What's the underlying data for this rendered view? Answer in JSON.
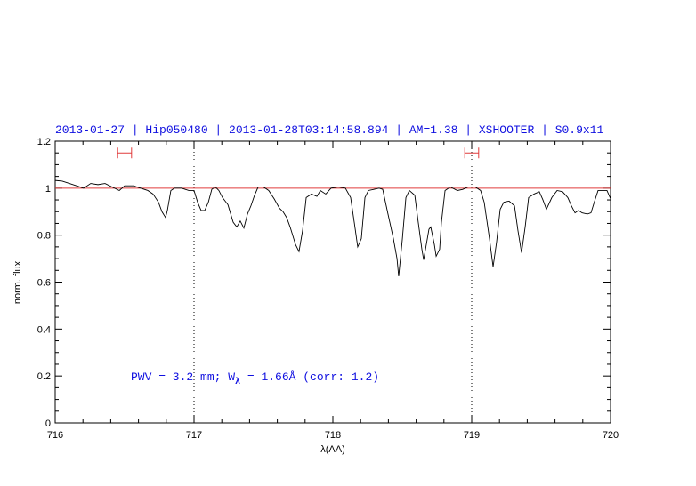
{
  "chart_data": {
    "type": "line",
    "title": "2013-01-27 | Hip050480 | 2013-01-28T03:14:58.894 | AM=1.38 | XSHOOTER | S0.9x11",
    "xlabel": "λ(AA)",
    "ylabel": "norm. flux",
    "annotation": [
      "PWV = 3.2 mm; W",
      "λ",
      " = 1.66Å (corr: 1.2)"
    ],
    "color": "#000000",
    "x": [
      716.0,
      716.051,
      716.103,
      716.154,
      716.205,
      716.256,
      716.308,
      716.359,
      716.41,
      716.462,
      716.5,
      716.564,
      716.615,
      716.667,
      716.705,
      716.744,
      716.769,
      716.795,
      716.808,
      716.833,
      716.859,
      716.91,
      716.962,
      717.0,
      717.026,
      717.051,
      717.077,
      717.103,
      717.128,
      717.154,
      717.179,
      717.205,
      717.244,
      717.282,
      717.308,
      717.333,
      717.359,
      717.385,
      717.41,
      717.436,
      717.462,
      717.5,
      717.538,
      717.577,
      717.615,
      717.641,
      717.667,
      717.692,
      717.731,
      717.756,
      717.782,
      717.808,
      717.846,
      717.885,
      717.91,
      717.949,
      717.987,
      718.038,
      718.09,
      718.128,
      718.154,
      718.179,
      718.205,
      718.231,
      718.256,
      718.295,
      718.333,
      718.359,
      718.397,
      718.436,
      718.462,
      718.474,
      718.5,
      718.526,
      718.551,
      718.59,
      718.615,
      718.641,
      718.654,
      718.679,
      718.692,
      718.705,
      718.731,
      718.744,
      718.769,
      718.782,
      718.808,
      718.846,
      718.897,
      718.936,
      718.974,
      719.026,
      719.064,
      719.09,
      719.128,
      719.154,
      719.179,
      719.205,
      719.231,
      719.269,
      719.308,
      719.333,
      719.359,
      719.385,
      719.41,
      719.449,
      719.487,
      719.513,
      719.538,
      719.577,
      719.615,
      719.654,
      719.692,
      719.718,
      719.744,
      719.769,
      719.795,
      719.833,
      719.859,
      719.885,
      719.91,
      719.949,
      719.974,
      720.0
    ],
    "values": [
      1.033,
      1.03,
      1.02,
      1.01,
      1.0,
      1.02,
      1.015,
      1.02,
      1.005,
      0.99,
      1.01,
      1.01,
      1.0,
      0.99,
      0.975,
      0.94,
      0.9,
      0.875,
      0.905,
      0.99,
      1.0,
      1.0,
      0.99,
      0.99,
      0.94,
      0.905,
      0.905,
      0.94,
      0.995,
      1.005,
      0.99,
      0.96,
      0.93,
      0.855,
      0.835,
      0.86,
      0.83,
      0.89,
      0.925,
      0.97,
      1.005,
      1.005,
      0.99,
      0.955,
      0.915,
      0.9,
      0.875,
      0.835,
      0.76,
      0.73,
      0.82,
      0.96,
      0.975,
      0.965,
      0.99,
      0.975,
      1.0,
      1.005,
      1.0,
      0.96,
      0.855,
      0.75,
      0.785,
      0.96,
      0.99,
      0.995,
      1.0,
      0.995,
      0.89,
      0.785,
      0.7,
      0.625,
      0.78,
      0.96,
      0.99,
      0.97,
      0.855,
      0.74,
      0.695,
      0.78,
      0.825,
      0.835,
      0.76,
      0.71,
      0.74,
      0.855,
      0.99,
      1.005,
      0.99,
      0.995,
      1.005,
      1.005,
      0.99,
      0.94,
      0.785,
      0.665,
      0.77,
      0.91,
      0.94,
      0.945,
      0.925,
      0.82,
      0.725,
      0.835,
      0.96,
      0.975,
      0.985,
      0.95,
      0.91,
      0.96,
      0.99,
      0.985,
      0.96,
      0.925,
      0.895,
      0.905,
      0.895,
      0.89,
      0.895,
      0.945,
      0.99,
      0.99,
      0.99,
      0.955
    ],
    "hline": 1,
    "hline_color": "#e03c3c",
    "vlines": [
      717,
      719
    ],
    "windows": [
      [
        716.45,
        716.55
      ],
      [
        718.95,
        719.05
      ]
    ],
    "window_y": 1.15,
    "window_color": "#e03c3c",
    "text_color": "#1010e0",
    "xlim": [
      716,
      720
    ],
    "ylim": [
      0,
      1.2
    ],
    "xticks": [
      716,
      717,
      718,
      719,
      720
    ],
    "yticks": [
      0,
      0.2,
      0.4,
      0.6,
      0.8,
      1,
      1.2
    ],
    "xminorticks": [
      716.2,
      716.4,
      716.6,
      716.8,
      717.2,
      717.4,
      717.6,
      717.8,
      718.2,
      718.4,
      718.6,
      718.8,
      719.2,
      719.4,
      719.6,
      719.8
    ],
    "yminorticks": [
      0.05,
      0.1,
      0.15,
      0.25,
      0.3,
      0.35,
      0.45,
      0.5,
      0.55,
      0.65,
      0.7,
      0.75,
      0.85,
      0.9,
      0.95,
      1.05,
      1.1,
      1.15
    ]
  }
}
